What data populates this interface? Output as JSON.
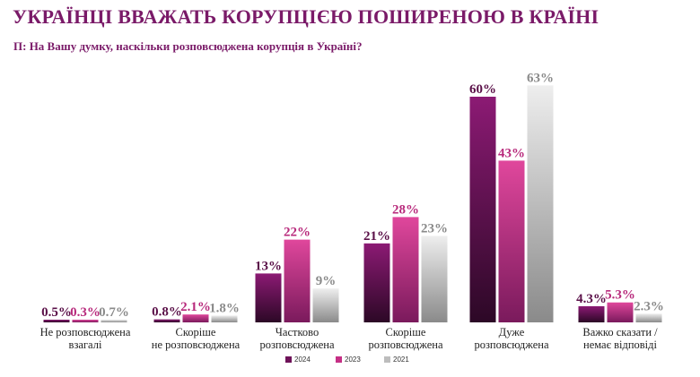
{
  "header": {
    "title": "УКРАЇНЦІ ВВАЖАТЬ КОРУПЦІЄЮ ПОШИРЕНОЮ В КРАЇНІ",
    "subtitle": "П: На Вашу думку, наскільки розповсюджена корупція в Україні?"
  },
  "chart_data": {
    "type": "bar",
    "title": "УКРАЇНЦІ ВВАЖАТЬ КОРУПЦІЄЮ ПОШИРЕНОЮ В КРАЇНІ",
    "subtitle": "П: На Вашу думку, наскільки розповсюджена корупція в Україні?",
    "categories": [
      [
        "Не розповсюджена",
        "взагалі"
      ],
      [
        "Скоріше",
        "не розповсюджена"
      ],
      [
        "Частково",
        "розповсюджена"
      ],
      [
        "Скоріше",
        "розповсюджена"
      ],
      [
        "Дуже",
        "розповсюджена"
      ],
      [
        "Важко сказати /",
        "немає відповіді"
      ]
    ],
    "series": [
      {
        "name": "2024",
        "values": [
          0.5,
          0.8,
          13,
          21,
          60,
          4.3
        ],
        "labels": [
          "0.5%",
          "0.8%",
          "13%",
          "21%",
          "60%",
          "4.3%"
        ],
        "color": "#6e1259",
        "label_color": "#5a1048"
      },
      {
        "name": "2023",
        "values": [
          0.3,
          2.1,
          22,
          28,
          43,
          5.3
        ],
        "labels": [
          "0.3%",
          "2.1%",
          "22%",
          "28%",
          "43%",
          "5.3%"
        ],
        "color": "#c52f85",
        "label_color": "#b82a7c"
      },
      {
        "name": "2021",
        "values": [
          0.7,
          1.8,
          9,
          23,
          63,
          2.3
        ],
        "labels": [
          "0.7%",
          "1.8%",
          "9%",
          "23%",
          "63%",
          "2.3%"
        ],
        "color": "#bdbdbd",
        "label_color": "#8a8a8a"
      }
    ],
    "ylim": [
      0,
      65
    ],
    "grid": false,
    "legend_position": "bottom-center"
  }
}
